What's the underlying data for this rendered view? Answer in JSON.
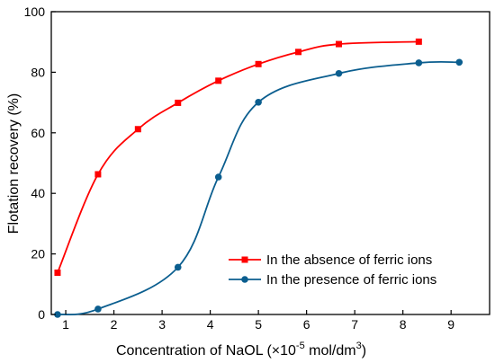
{
  "chart_data": {
    "type": "line",
    "xlabel_main": "Concentration of NaOL (",
    "xlabel_times": "×10",
    "xlabel_exp": "-5",
    "xlabel_unit": " mol/dm",
    "xlabel_unit_exp": "3",
    "xlabel_close": ")",
    "ylabel": "Flotation recovery (%)",
    "xlim": [
      0.7,
      9.8
    ],
    "ylim": [
      0,
      100
    ],
    "xticks": [
      1,
      2,
      3,
      4,
      5,
      6,
      7,
      8,
      9
    ],
    "yticks": [
      0,
      20,
      40,
      60,
      80,
      100
    ],
    "grid": false,
    "legend_position": "bottom-right",
    "series": [
      {
        "name": "In the absence of ferric ions",
        "color": "#ff0000",
        "marker": "square",
        "x": [
          0.83,
          1.67,
          2.5,
          3.33,
          4.17,
          5.0,
          5.83,
          6.67,
          8.33
        ],
        "y": [
          13.8,
          46.3,
          61.2,
          69.9,
          77.2,
          82.7,
          86.7,
          89.3,
          90.1
        ]
      },
      {
        "name": "In the presence of ferric ions",
        "color": "#0b5e8f",
        "marker": "circle",
        "x": [
          0.83,
          1.67,
          3.33,
          4.17,
          5.0,
          6.67,
          8.33,
          9.17
        ],
        "y": [
          0.0,
          1.8,
          15.6,
          45.4,
          70.1,
          79.6,
          83.1,
          83.3
        ]
      }
    ]
  }
}
